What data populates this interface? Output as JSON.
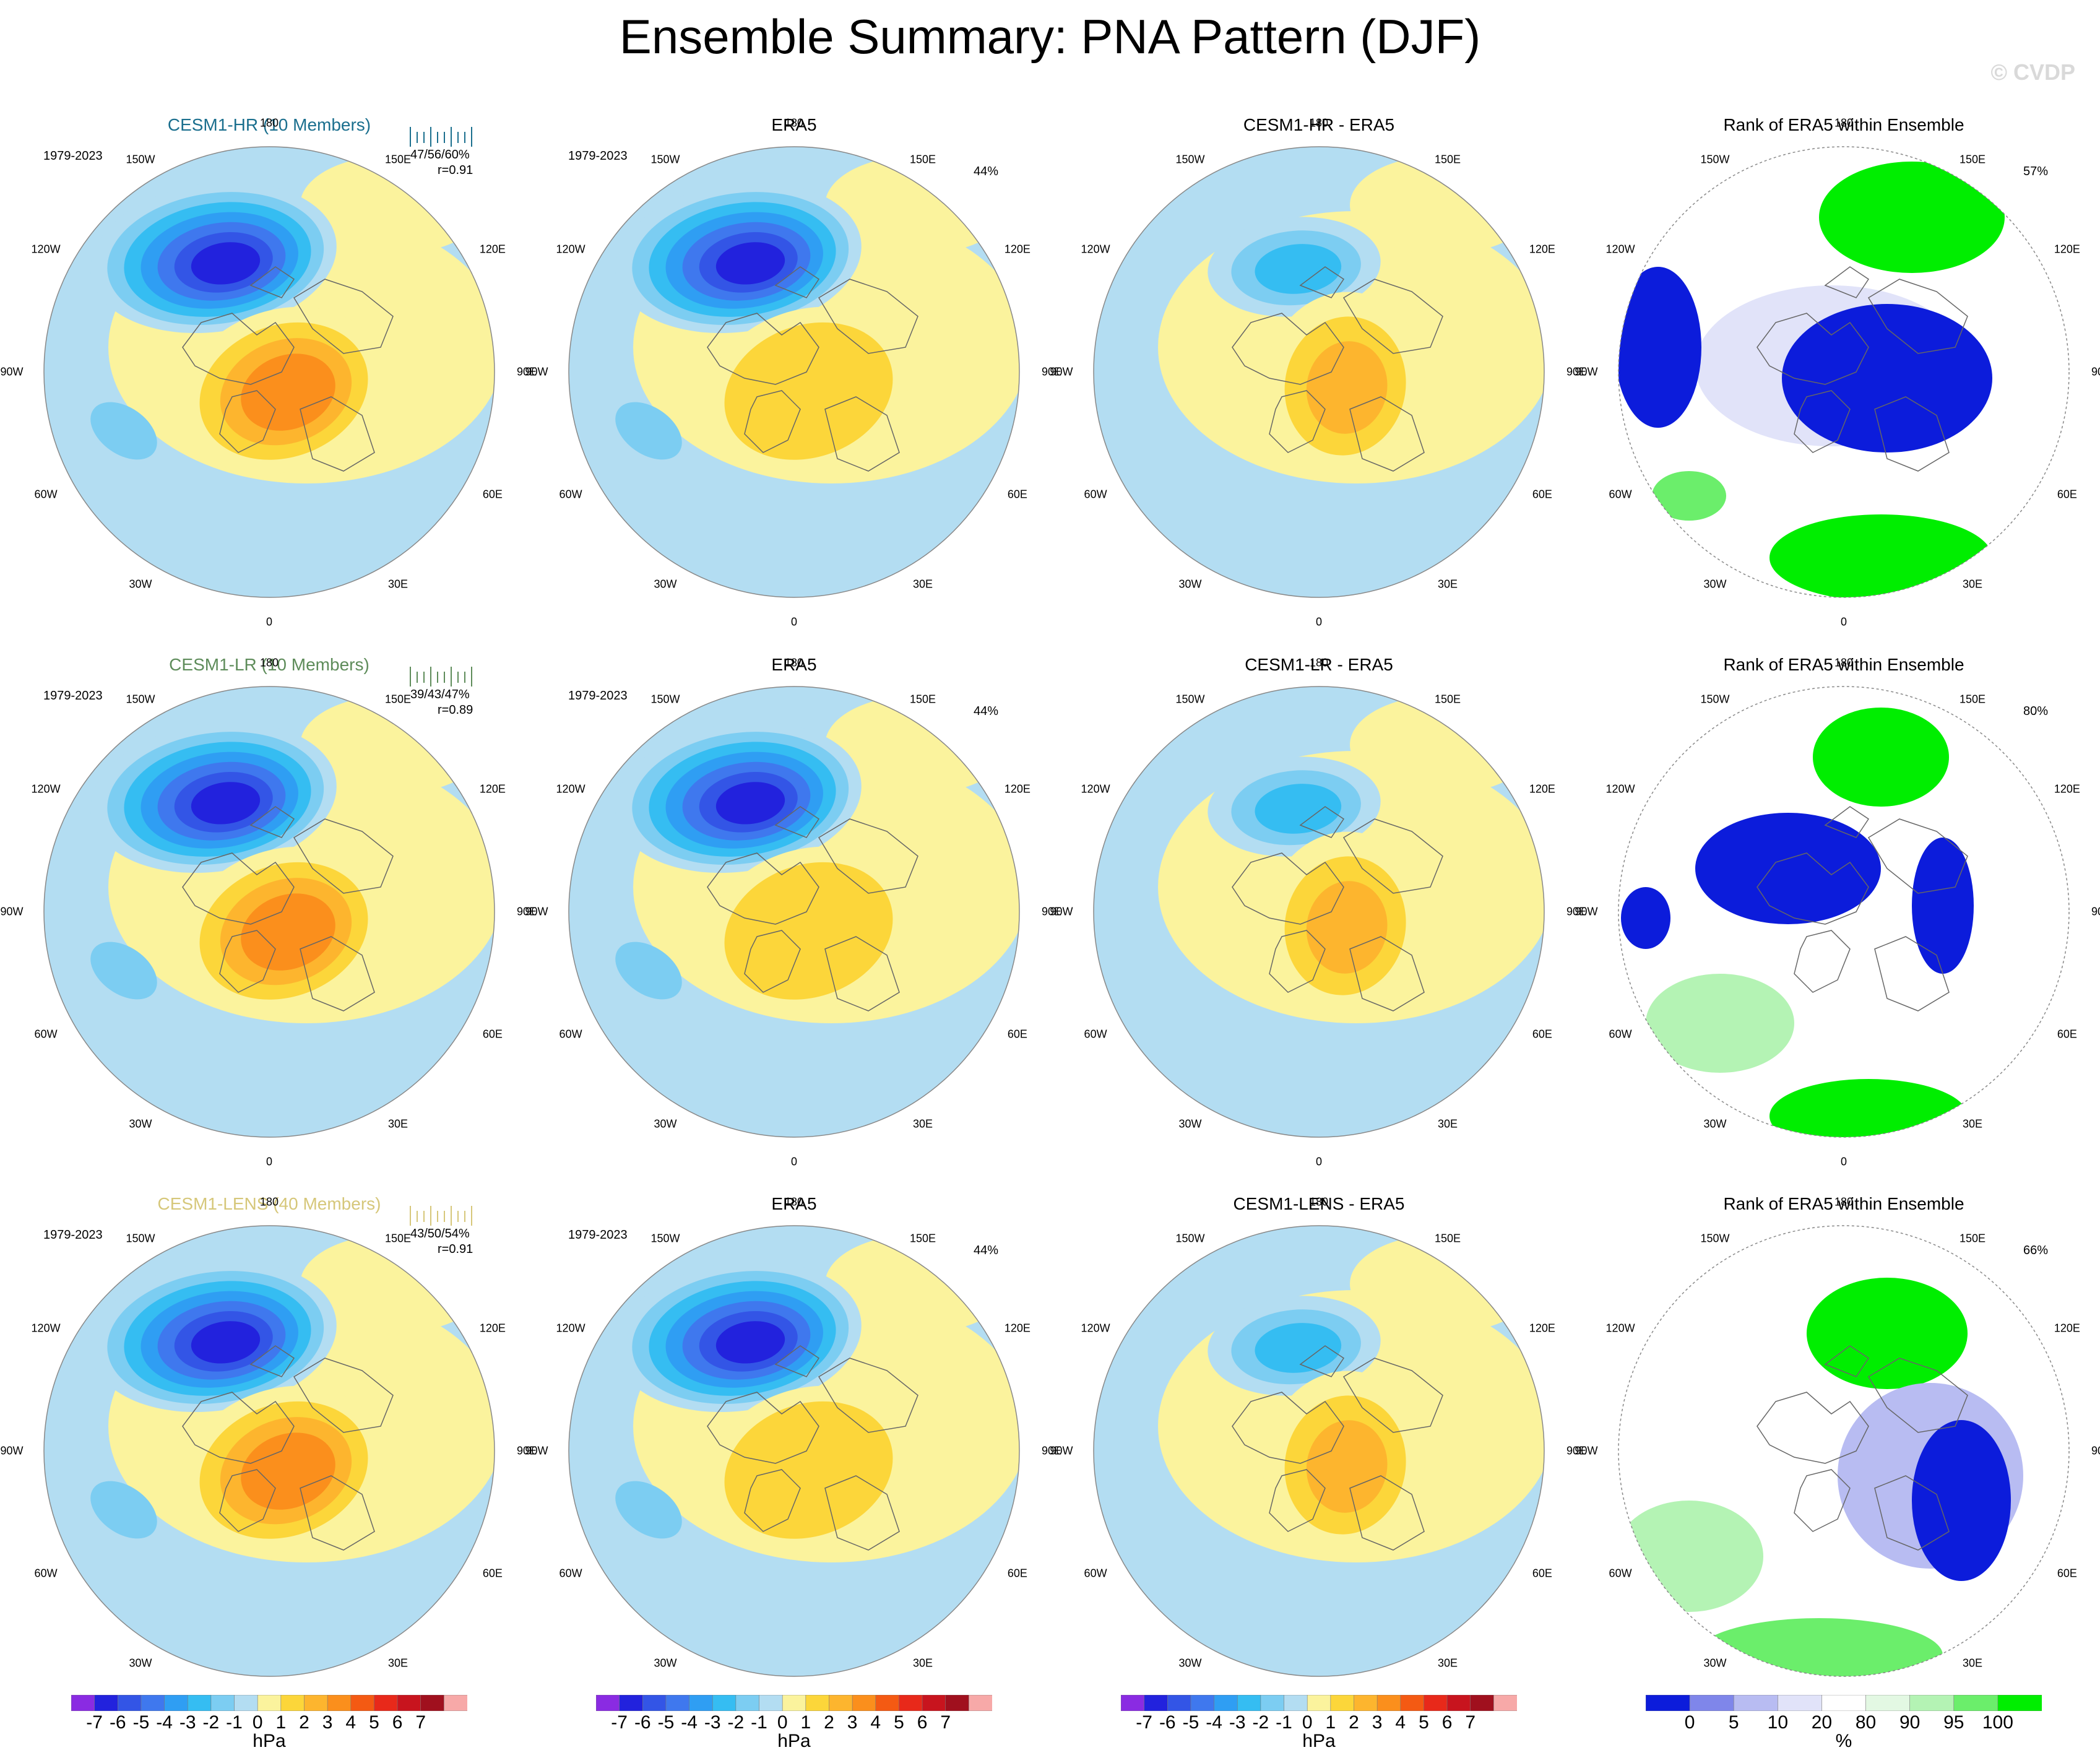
{
  "title": "Ensemble Summary: PNA Pattern (DJF)",
  "watermark": "© CVDP",
  "rows": [
    {
      "model_title": "CESM1-HR (10 Members)",
      "model_color": "#1b6f8e",
      "period": "1979-2023",
      "pct_summary": "47/56/60%",
      "corr": "r=0.91",
      "era5_title": "ERA5",
      "era5_period": "1979-2023",
      "era5_pct": "44%",
      "diff_title": "CESM1-HR - ERA5",
      "rank_title": "Rank of ERA5 within Ensemble",
      "rank_pct": "57%"
    },
    {
      "model_title": "CESM1-LR (10 Members)",
      "model_color": "#5e8c5a",
      "period": "1979-2023",
      "pct_summary": "39/43/47%",
      "corr": "r=0.89",
      "era5_title": "ERA5",
      "era5_period": "1979-2023",
      "era5_pct": "44%",
      "diff_title": "CESM1-LR - ERA5",
      "rank_title": "Rank of ERA5 within Ensemble",
      "rank_pct": "80%"
    },
    {
      "model_title": "CESM1-LENS (40 Members)",
      "model_color": "#d6c77a",
      "period": "1979-2023",
      "pct_summary": "43/50/54%",
      "corr": "r=0.91",
      "era5_title": "ERA5",
      "era5_period": "1979-2023",
      "era5_pct": "44%",
      "diff_title": "CESM1-LENS - ERA5",
      "rank_title": "Rank of ERA5 within Ensemble",
      "rank_pct": "66%"
    }
  ],
  "lon_labels": {
    "top": "180",
    "bottom": "0",
    "w150": "150W",
    "e150": "150E",
    "w120": "120W",
    "e120": "120E",
    "w90": "90W",
    "e90": "90E",
    "w60": "60W",
    "e60": "60E",
    "w30": "30W",
    "e30": "30E"
  },
  "colorbars": {
    "hpa": {
      "ticks": [
        "-7",
        "-6",
        "-5",
        "-4",
        "-3",
        "-2",
        "-1",
        "0",
        "1",
        "2",
        "3",
        "4",
        "5",
        "6",
        "7"
      ],
      "colors": [
        "#8a2be2",
        "#2222dd",
        "#3355e6",
        "#3f78ee",
        "#2f9ef3",
        "#35bdf2",
        "#7ccdf2",
        "#b3ddf2",
        "#fbf39d",
        "#fcd63a",
        "#fdb52e",
        "#fb8f1c",
        "#f45a13",
        "#e8291a",
        "#c8141e",
        "#a0101e",
        "#f7a9a8"
      ],
      "unit": "hPa"
    },
    "pct": {
      "ticks": [
        "0",
        "5",
        "10",
        "20",
        "80",
        "90",
        "95",
        "100"
      ],
      "colors": [
        "#0c1cdb",
        "#7f86ea",
        "#b8bcf2",
        "#e1e3f9",
        "#ffffff",
        "#e3f8e3",
        "#b4f3b4",
        "#6bee6b",
        "#00ee00"
      ],
      "unit": "%"
    }
  },
  "chart_data": [
    {
      "type": "heatmap",
      "title": "CESM1-HR (10 Members)",
      "subtitle": "1979-2023",
      "units": "hPa",
      "annotations": [
        "47/56/60%",
        "r=0.91"
      ],
      "features": [
        {
          "name": "North Pacific low",
          "value": -7
        },
        {
          "name": "Canada high",
          "value": 4
        },
        {
          "name": "Southeast US low",
          "value": -1
        }
      ]
    },
    {
      "type": "heatmap",
      "title": "ERA5",
      "subtitle": "1979-2023",
      "units": "hPa",
      "annotations": [
        "44%"
      ],
      "features": [
        {
          "name": "North Pacific low",
          "value": -6
        },
        {
          "name": "Canada high",
          "value": 2
        }
      ]
    },
    {
      "type": "heatmap",
      "title": "CESM1-HR - ERA5",
      "units": "hPa",
      "features": [
        {
          "name": "North Pacific",
          "value": -3
        },
        {
          "name": "Canada",
          "value": 3
        }
      ]
    },
    {
      "type": "heatmap",
      "title": "Rank of ERA5 within Ensemble",
      "units": "%",
      "annotations": [
        "57%"
      ],
      "features": [
        {
          "name": "Arctic / Canada",
          "value": 0
        },
        {
          "name": "North Pacific",
          "value": 100
        }
      ]
    },
    {
      "type": "heatmap",
      "title": "CESM1-LR (10 Members)",
      "subtitle": "1979-2023",
      "units": "hPa",
      "annotations": [
        "39/43/47%",
        "r=0.89"
      ],
      "features": [
        {
          "name": "North Pacific low",
          "value": -5
        },
        {
          "name": "Canada high",
          "value": 3
        }
      ]
    },
    {
      "type": "heatmap",
      "title": "ERA5",
      "subtitle": "1979-2023",
      "units": "hPa",
      "annotations": [
        "44%"
      ],
      "features": [
        {
          "name": "North Pacific low",
          "value": -6
        },
        {
          "name": "Canada high",
          "value": 2
        }
      ]
    },
    {
      "type": "heatmap",
      "title": "CESM1-LR - ERA5",
      "units": "hPa",
      "features": [
        {
          "name": "North Pacific",
          "value": -2
        },
        {
          "name": "Canada",
          "value": 2
        }
      ]
    },
    {
      "type": "heatmap",
      "title": "Rank of ERA5 within Ensemble",
      "units": "%",
      "annotations": [
        "80%"
      ],
      "features": [
        {
          "name": "Canada",
          "value": 0
        },
        {
          "name": "North Pacific",
          "value": 100
        }
      ]
    },
    {
      "type": "heatmap",
      "title": "CESM1-LENS (40 Members)",
      "subtitle": "1979-2023",
      "units": "hPa",
      "annotations": [
        "43/50/54%",
        "r=0.91"
      ],
      "features": [
        {
          "name": "North Pacific low",
          "value": -6
        },
        {
          "name": "Canada high",
          "value": 3
        }
      ]
    },
    {
      "type": "heatmap",
      "title": "ERA5",
      "subtitle": "1979-2023",
      "units": "hPa",
      "annotations": [
        "44%"
      ],
      "features": [
        {
          "name": "North Pacific low",
          "value": -6
        },
        {
          "name": "Canada high",
          "value": 2
        }
      ]
    },
    {
      "type": "heatmap",
      "title": "CESM1-LENS - ERA5",
      "units": "hPa",
      "features": [
        {
          "name": "North Pacific",
          "value": -3
        },
        {
          "name": "Canada",
          "value": 2
        }
      ]
    },
    {
      "type": "heatmap",
      "title": "Rank of ERA5 within Ensemble",
      "units": "%",
      "annotations": [
        "66%"
      ],
      "features": [
        {
          "name": "Asia",
          "value": 0
        },
        {
          "name": "North Pacific",
          "value": 100
        }
      ]
    }
  ]
}
